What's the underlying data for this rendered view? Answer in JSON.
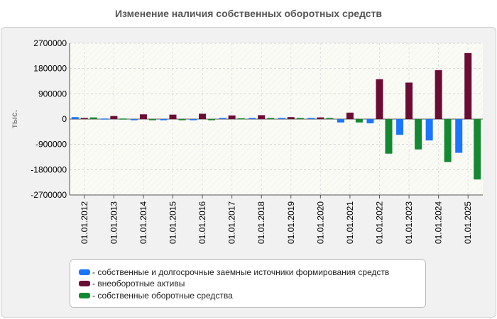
{
  "chart_data": {
    "type": "bar",
    "title": "Изменение наличия собственных оборотных средств",
    "ylabel": "тыс.",
    "xlabel": "",
    "ylim": [
      -2700000,
      2700000
    ],
    "yticks": [
      2700000,
      1800000,
      900000,
      0,
      -900000,
      -1800000,
      -2700000
    ],
    "yticklabels": [
      "2700000",
      "1800000",
      "900000",
      "0",
      "-900000",
      "-1800000",
      "-2700000"
    ],
    "grid": true,
    "legend_position": "bottom",
    "categories": [
      "01.01.2012",
      "01.01.2013",
      "01.01.2014",
      "01.01.2015",
      "01.01.2016",
      "01.01.2017",
      "01.01.2018",
      "01.01.2019",
      "01.01.2020",
      "01.01.2021",
      "01.01.2022",
      "01.01.2023",
      "01.01.2024",
      "01.01.2025"
    ],
    "series": [
      {
        "name": "собственные и долгосрочные заемные источники формирования средств",
        "color": "#1a75ff",
        "values": [
          70000,
          20000,
          -40000,
          -40000,
          -40000,
          40000,
          40000,
          40000,
          40000,
          -120000,
          -150000,
          -560000,
          -760000,
          -1200000
        ]
      },
      {
        "name": "внеоборотные активы",
        "color": "#6b0c35",
        "values": [
          40000,
          110000,
          170000,
          160000,
          190000,
          130000,
          140000,
          70000,
          60000,
          230000,
          1420000,
          1300000,
          1740000,
          2350000
        ]
      },
      {
        "name": "собственные оборотные средства",
        "color": "#138a32",
        "values": [
          60000,
          20000,
          -40000,
          -40000,
          -40000,
          30000,
          40000,
          40000,
          40000,
          -120000,
          -1230000,
          -1080000,
          -1530000,
          -2150000
        ]
      }
    ]
  }
}
